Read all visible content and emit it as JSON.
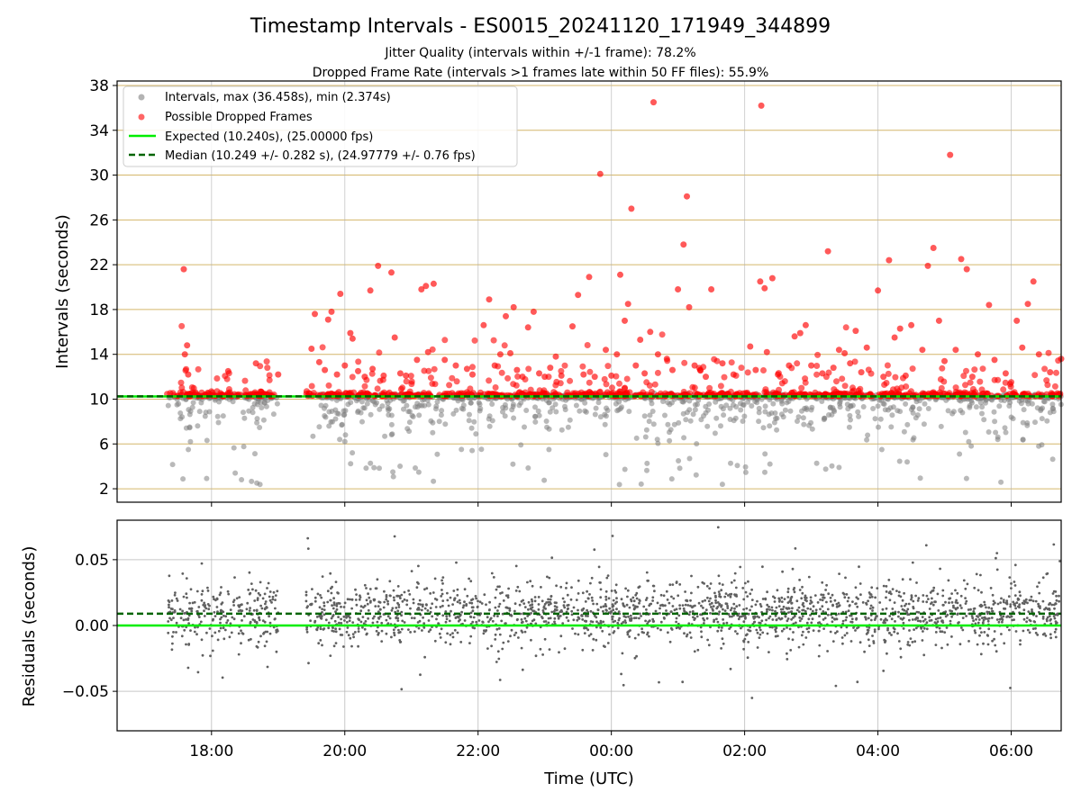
{
  "figure": {
    "title": "Timestamp Intervals - ES0015_20241120_171949_344899",
    "subtitle_lines": [
      "Jitter Quality (intervals within +/-1 frame): 78.2%",
      "Dropped Frame Rate (intervals >1 frames late within 50 FF files): 55.9%"
    ]
  },
  "colors": {
    "intervals": "#808080",
    "dropped": "#ff0000",
    "expected": "#00ee00",
    "median": "#006400",
    "grid_top": "#d4b66a",
    "grid_bottom": "#b0b0b0",
    "residual_points": "#606060"
  },
  "chart_data": [
    {
      "type": "scatter",
      "panel": "top",
      "xlabel": "",
      "ylabel": "Intervals (seconds)",
      "x_range": [
        "2024-11-20T16:35",
        "2024-11-21T06:45"
      ],
      "ylim": [
        0.8,
        38.4
      ],
      "yticks": [
        2,
        6,
        10,
        14,
        18,
        22,
        26,
        30,
        34,
        38
      ],
      "grid": true,
      "legend": {
        "placement": "top-left",
        "entries": [
          "Intervals, max (36.458s), min (2.374s)",
          "Possible Dropped Frames",
          "Expected (10.240s), (25.00000 fps)",
          "Median (10.249 +/- 0.282 s), (24.97779 +/- 0.76 fps)"
        ]
      },
      "reference_lines": {
        "expected_seconds": 10.24,
        "median_seconds": 10.249
      },
      "intervals_max_seconds": 36.458,
      "intervals_min_seconds": 2.374,
      "data_start": "2024-11-20T17:19",
      "data_end": "2024-11-21T06:45",
      "active_segments": [
        [
          "2024-11-20T17:20",
          "2024-11-20T19:00"
        ],
        [
          "2024-11-20T19:25",
          "2024-11-21T06:45"
        ]
      ],
      "dropped_points": [
        {
          "t": "17:35",
          "y": 21.6
        },
        {
          "t": "17:36",
          "y": 14.0
        },
        {
          "t": "17:38",
          "y": 14.8
        },
        {
          "t": "17:39",
          "y": 12.2
        },
        {
          "t": "18:15",
          "y": 12.5
        },
        {
          "t": "18:40",
          "y": 13.2
        },
        {
          "t": "19:00",
          "y": 12.2
        },
        {
          "t": "19:30",
          "y": 14.5
        },
        {
          "t": "19:33",
          "y": 17.6
        },
        {
          "t": "19:37",
          "y": 13.3
        },
        {
          "t": "19:42",
          "y": 12.6
        },
        {
          "t": "19:45",
          "y": 17.1
        },
        {
          "t": "19:48",
          "y": 17.8
        },
        {
          "t": "19:53",
          "y": 12.2
        },
        {
          "t": "19:56",
          "y": 19.4
        },
        {
          "t": "20:00",
          "y": 13.0
        },
        {
          "t": "20:05",
          "y": 15.9
        },
        {
          "t": "20:07",
          "y": 15.4
        },
        {
          "t": "20:12",
          "y": 12.5
        },
        {
          "t": "20:18",
          "y": 12.0
        },
        {
          "t": "20:23",
          "y": 19.7
        },
        {
          "t": "20:25",
          "y": 12.7
        },
        {
          "t": "20:30",
          "y": 21.9
        },
        {
          "t": "20:35",
          "y": 12.1
        },
        {
          "t": "20:42",
          "y": 21.3
        },
        {
          "t": "20:45",
          "y": 15.5
        },
        {
          "t": "20:50",
          "y": 12.3
        },
        {
          "t": "20:55",
          "y": 12.1
        },
        {
          "t": "21:05",
          "y": 13.5
        },
        {
          "t": "21:09",
          "y": 19.8
        },
        {
          "t": "21:13",
          "y": 20.1
        },
        {
          "t": "21:15",
          "y": 14.2
        },
        {
          "t": "21:20",
          "y": 20.3
        },
        {
          "t": "21:30",
          "y": 13.5
        },
        {
          "t": "21:40",
          "y": 13.0
        },
        {
          "t": "21:50",
          "y": 12.7
        },
        {
          "t": "21:55",
          "y": 12.2
        },
        {
          "t": "22:05",
          "y": 16.6
        },
        {
          "t": "22:10",
          "y": 18.9
        },
        {
          "t": "22:15",
          "y": 13.0
        },
        {
          "t": "22:20",
          "y": 14.0
        },
        {
          "t": "22:25",
          "y": 17.4
        },
        {
          "t": "22:29",
          "y": 14.1
        },
        {
          "t": "22:32",
          "y": 18.2
        },
        {
          "t": "22:35",
          "y": 12.6
        },
        {
          "t": "22:40",
          "y": 12.0
        },
        {
          "t": "22:45",
          "y": 16.4
        },
        {
          "t": "22:50",
          "y": 17.8
        },
        {
          "t": "22:55",
          "y": 12.3
        },
        {
          "t": "23:00",
          "y": 12.0
        },
        {
          "t": "23:05",
          "y": 12.8
        },
        {
          "t": "23:10",
          "y": 13.8
        },
        {
          "t": "23:15",
          "y": 12.1
        },
        {
          "t": "23:25",
          "y": 16.5
        },
        {
          "t": "23:30",
          "y": 19.3
        },
        {
          "t": "23:35",
          "y": 12.2
        },
        {
          "t": "23:40",
          "y": 20.9
        },
        {
          "t": "23:45",
          "y": 12.0
        },
        {
          "t": "23:50",
          "y": 30.1
        },
        {
          "t": "23:55",
          "y": 14.4
        },
        {
          "t": "00:00",
          "y": 12.1
        },
        {
          "t": "00:05",
          "y": 14.0
        },
        {
          "t": "00:08",
          "y": 21.1
        },
        {
          "t": "00:12",
          "y": 17.0
        },
        {
          "t": "00:15",
          "y": 18.5
        },
        {
          "t": "00:18",
          "y": 27.0
        },
        {
          "t": "00:22",
          "y": 13.0
        },
        {
          "t": "00:26",
          "y": 15.3
        },
        {
          "t": "00:30",
          "y": 12.3
        },
        {
          "t": "00:35",
          "y": 16.0
        },
        {
          "t": "00:38",
          "y": 36.5
        },
        {
          "t": "00:42",
          "y": 14.0
        },
        {
          "t": "00:50",
          "y": 13.6
        },
        {
          "t": "00:55",
          "y": 12.6
        },
        {
          "t": "01:00",
          "y": 19.8
        },
        {
          "t": "01:05",
          "y": 23.8
        },
        {
          "t": "01:08",
          "y": 28.1
        },
        {
          "t": "01:10",
          "y": 18.2
        },
        {
          "t": "01:15",
          "y": 13.0
        },
        {
          "t": "01:20",
          "y": 12.6
        },
        {
          "t": "01:25",
          "y": 12.0
        },
        {
          "t": "01:30",
          "y": 19.8
        },
        {
          "t": "01:40",
          "y": 13.2
        },
        {
          "t": "01:50",
          "y": 12.2
        },
        {
          "t": "02:05",
          "y": 14.7
        },
        {
          "t": "02:10",
          "y": 12.6
        },
        {
          "t": "02:14",
          "y": 20.5
        },
        {
          "t": "02:15",
          "y": 36.2
        },
        {
          "t": "02:18",
          "y": 19.9
        },
        {
          "t": "02:20",
          "y": 14.2
        },
        {
          "t": "02:25",
          "y": 20.8
        },
        {
          "t": "02:30",
          "y": 12.2
        },
        {
          "t": "02:40",
          "y": 13.0
        },
        {
          "t": "02:45",
          "y": 15.6
        },
        {
          "t": "02:50",
          "y": 15.9
        },
        {
          "t": "02:55",
          "y": 16.6
        },
        {
          "t": "03:00",
          "y": 13.0
        },
        {
          "t": "03:10",
          "y": 12.3
        },
        {
          "t": "03:15",
          "y": 23.2
        },
        {
          "t": "03:20",
          "y": 12.8
        },
        {
          "t": "03:25",
          "y": 14.4
        },
        {
          "t": "03:30",
          "y": 14.1
        },
        {
          "t": "03:35",
          "y": 13.2
        },
        {
          "t": "03:40",
          "y": 16.1
        },
        {
          "t": "03:45",
          "y": 12.4
        },
        {
          "t": "03:50",
          "y": 14.6
        },
        {
          "t": "04:00",
          "y": 19.7
        },
        {
          "t": "04:05",
          "y": 12.0
        },
        {
          "t": "04:10",
          "y": 22.4
        },
        {
          "t": "04:15",
          "y": 15.5
        },
        {
          "t": "04:20",
          "y": 16.3
        },
        {
          "t": "04:25",
          "y": 12.1
        },
        {
          "t": "04:30",
          "y": 16.6
        },
        {
          "t": "04:40",
          "y": 14.4
        },
        {
          "t": "04:45",
          "y": 21.9
        },
        {
          "t": "04:50",
          "y": 23.5
        },
        {
          "t": "04:55",
          "y": 17.0
        },
        {
          "t": "05:00",
          "y": 13.4
        },
        {
          "t": "05:05",
          "y": 31.8
        },
        {
          "t": "05:10",
          "y": 14.4
        },
        {
          "t": "05:15",
          "y": 22.5
        },
        {
          "t": "05:20",
          "y": 21.6
        },
        {
          "t": "05:25",
          "y": 12.0
        },
        {
          "t": "05:30",
          "y": 14.0
        },
        {
          "t": "05:40",
          "y": 18.4
        },
        {
          "t": "05:45",
          "y": 13.5
        },
        {
          "t": "05:55",
          "y": 12.3
        },
        {
          "t": "06:05",
          "y": 17.0
        },
        {
          "t": "06:10",
          "y": 14.6
        },
        {
          "t": "06:15",
          "y": 18.5
        },
        {
          "t": "06:20",
          "y": 20.5
        },
        {
          "t": "06:25",
          "y": 14.0
        },
        {
          "t": "06:35",
          "y": 12.4
        },
        {
          "t": "06:45",
          "y": 13.6
        }
      ]
    },
    {
      "type": "scatter",
      "panel": "bottom",
      "xlabel": "Time (UTC)",
      "ylabel": "Residuals (seconds)",
      "x_range": [
        "2024-11-20T16:35",
        "2024-11-21T06:45"
      ],
      "ylim": [
        -0.08,
        0.08
      ],
      "yticks": [
        -0.05,
        0.0,
        0.05
      ],
      "ytick_labels": [
        "−0.05",
        "0.00",
        "0.05"
      ],
      "xticks": [
        "18:00",
        "20:00",
        "22:00",
        "00:00",
        "02:00",
        "04:00",
        "06:00"
      ],
      "grid": true,
      "reference_lines": {
        "expected_residual": 0.0,
        "median_residual": 0.009
      },
      "residual_spread": {
        "mean": 0.009,
        "sd": 0.012
      }
    }
  ]
}
